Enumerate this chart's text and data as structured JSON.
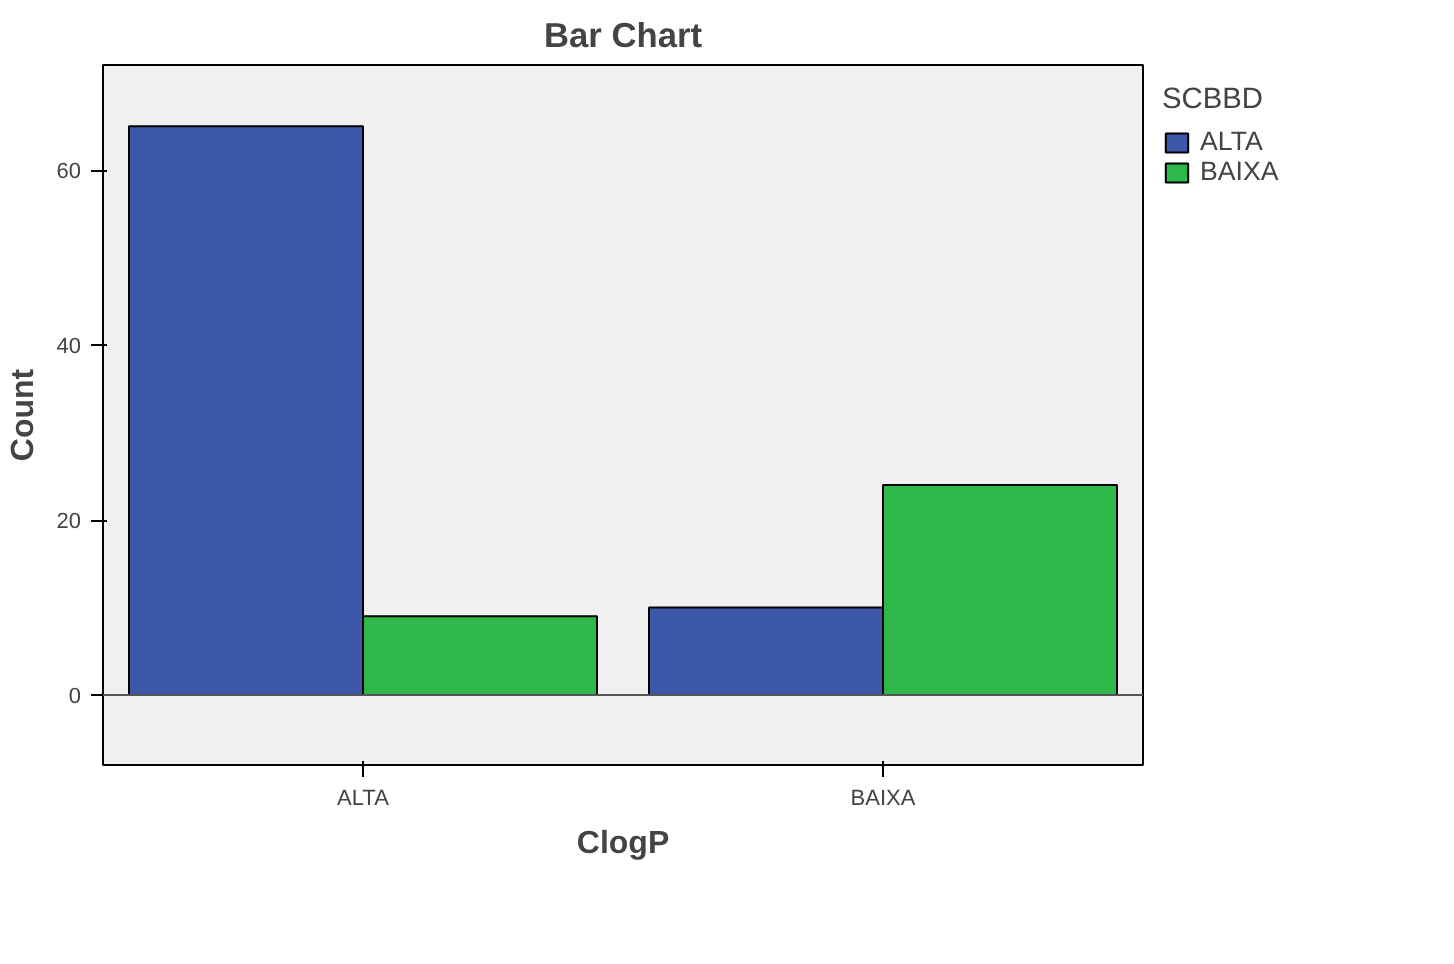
{
  "chart_data": {
    "type": "bar",
    "title": "Bar Chart",
    "xlabel": "ClogP",
    "ylabel": "Count",
    "legend_title": "SCBBD",
    "categories": [
      "ALTA",
      "BAIXA"
    ],
    "series": [
      {
        "name": "ALTA",
        "color": "#3e58a9",
        "values": [
          65,
          10
        ]
      },
      {
        "name": "BAIXA",
        "color": "#2eb84a",
        "values": [
          9,
          24
        ]
      }
    ],
    "ylim": [
      -8,
      72
    ],
    "yticks": [
      0,
      20,
      40,
      60
    ],
    "legend": "top right"
  }
}
